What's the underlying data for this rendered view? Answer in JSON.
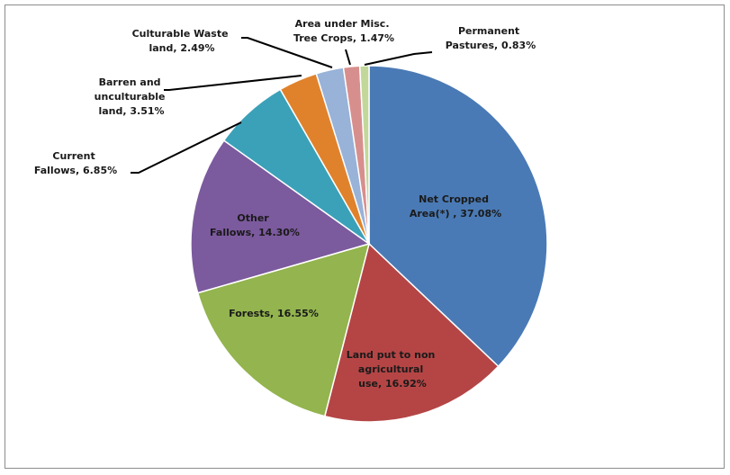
{
  "chart_data": {
    "type": "pie",
    "title": "",
    "start_angle_deg": 0,
    "direction": "clockwise",
    "slices": [
      {
        "label_lines": [
          "Net Cropped",
          "Area(*) , 37.08%"
        ],
        "value": 37.08,
        "color": "#4a7ab5"
      },
      {
        "label_lines": [
          "Land put to non",
          "agricultural",
          "use, 16.92%"
        ],
        "value": 16.92,
        "color": "#b54545"
      },
      {
        "label_lines": [
          "Forests, 16.55%"
        ],
        "value": 16.55,
        "color": "#93b44e"
      },
      {
        "label_lines": [
          "Other",
          "Fallows, 14.30%"
        ],
        "value": 14.3,
        "color": "#7c5a9e"
      },
      {
        "label_lines": [
          "Current",
          "Fallows, 6.85%"
        ],
        "value": 6.85,
        "color": "#3ba1b9"
      },
      {
        "label_lines": [
          "Barren and",
          "unculturable",
          "land, 3.51%"
        ],
        "value": 3.51,
        "color": "#e0822c"
      },
      {
        "label_lines": [
          "Culturable  Waste",
          "land, 2.49%"
        ],
        "value": 2.49,
        "color": "#98b2d8"
      },
      {
        "label_lines": [
          "Area under Misc.",
          "Tree Crops, 1.47%"
        ],
        "value": 1.47,
        "color": "#d78f8d"
      },
      {
        "label_lines": [
          "Permanent",
          "Pastures, 0.83%"
        ],
        "value": 0.83,
        "color": "#c2d89a"
      }
    ]
  }
}
